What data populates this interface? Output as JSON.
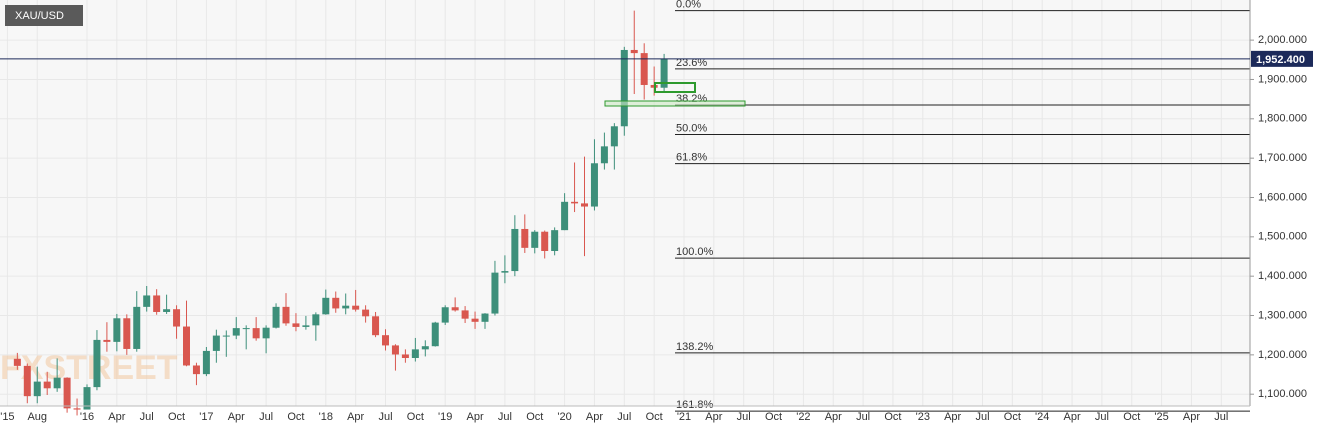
{
  "chart_data": {
    "type": "candlestick",
    "symbol": "XAU/USD",
    "watermark": "FXSTREET",
    "up_color": "#3d8f7a",
    "down_color": "#d9574f",
    "grid": true,
    "x": [
      "2015-06",
      "2015-07",
      "2015-08",
      "2015-09",
      "2015-10",
      "2015-11",
      "2015-12",
      "2016-01",
      "2016-02",
      "2016-03",
      "2016-04",
      "2016-05",
      "2016-06",
      "2016-07",
      "2016-08",
      "2016-09",
      "2016-10",
      "2016-11",
      "2016-12",
      "2017-01",
      "2017-02",
      "2017-03",
      "2017-04",
      "2017-05",
      "2017-06",
      "2017-07",
      "2017-08",
      "2017-09",
      "2017-10",
      "2017-11",
      "2017-12",
      "2018-01",
      "2018-02",
      "2018-03",
      "2018-04",
      "2018-05",
      "2018-06",
      "2018-07",
      "2018-08",
      "2018-09",
      "2018-10",
      "2018-11",
      "2018-12",
      "2019-01",
      "2019-02",
      "2019-03",
      "2019-04",
      "2019-05",
      "2019-06",
      "2019-07",
      "2019-08",
      "2019-09",
      "2019-10",
      "2019-11",
      "2019-12",
      "2020-01",
      "2020-02",
      "2020-03",
      "2020-04",
      "2020-05",
      "2020-06",
      "2020-07",
      "2020-08",
      "2020-09",
      "2020-10",
      "2020-11"
    ],
    "open": [
      1190,
      1172,
      1095,
      1132,
      1115,
      1142,
      1064,
      1061,
      1118,
      1238,
      1233,
      1293,
      1215,
      1322,
      1351,
      1309,
      1316,
      1272,
      1173,
      1151,
      1210,
      1249,
      1249,
      1268,
      1268,
      1242,
      1269,
      1322,
      1280,
      1271,
      1275,
      1303,
      1345,
      1318,
      1325,
      1315,
      1298,
      1250,
      1224,
      1201,
      1192,
      1214,
      1222,
      1282,
      1321,
      1313,
      1292,
      1284,
      1305,
      1409,
      1413,
      1520,
      1472,
      1513,
      1464,
      1517,
      1589,
      1585,
      1577,
      1687,
      1730,
      1781,
      1975,
      1967,
      1886,
      1879
    ],
    "high": [
      1205,
      1178,
      1170,
      1157,
      1191,
      1143,
      1089,
      1125,
      1263,
      1283,
      1304,
      1303,
      1362,
      1375,
      1367,
      1353,
      1326,
      1338,
      1180,
      1220,
      1264,
      1262,
      1296,
      1275,
      1296,
      1275,
      1331,
      1357,
      1306,
      1299,
      1308,
      1366,
      1361,
      1356,
      1365,
      1326,
      1309,
      1265,
      1227,
      1214,
      1243,
      1237,
      1284,
      1326,
      1346,
      1324,
      1310,
      1306,
      1439,
      1453,
      1555,
      1557,
      1517,
      1516,
      1524,
      1611,
      1689,
      1704,
      1748,
      1765,
      1789,
      1983,
      2075,
      1992,
      1933,
      1965
    ],
    "low": [
      1162,
      1077,
      1077,
      1098,
      1106,
      1053,
      1046,
      1062,
      1110,
      1208,
      1209,
      1200,
      1208,
      1310,
      1302,
      1304,
      1241,
      1171,
      1123,
      1146,
      1180,
      1195,
      1240,
      1214,
      1236,
      1204,
      1267,
      1274,
      1260,
      1264,
      1236,
      1302,
      1307,
      1303,
      1310,
      1282,
      1245,
      1211,
      1160,
      1180,
      1183,
      1196,
      1221,
      1276,
      1310,
      1281,
      1266,
      1266,
      1300,
      1382,
      1400,
      1459,
      1458,
      1445,
      1453,
      1517,
      1563,
      1451,
      1567,
      1671,
      1671,
      1757,
      1863,
      1849,
      1859,
      1870
    ],
    "close": [
      1172,
      1095,
      1132,
      1115,
      1142,
      1064,
      1061,
      1118,
      1238,
      1233,
      1293,
      1215,
      1322,
      1351,
      1309,
      1316,
      1272,
      1173,
      1151,
      1210,
      1249,
      1249,
      1268,
      1268,
      1242,
      1269,
      1322,
      1280,
      1271,
      1275,
      1303,
      1345,
      1318,
      1325,
      1315,
      1298,
      1250,
      1224,
      1201,
      1192,
      1214,
      1222,
      1282,
      1321,
      1313,
      1292,
      1284,
      1305,
      1409,
      1413,
      1520,
      1472,
      1513,
      1464,
      1517,
      1589,
      1585,
      1577,
      1687,
      1730,
      1781,
      1975,
      1967,
      1886,
      1879,
      1952
    ],
    "ylim": [
      1070,
      2102
    ],
    "yticks": [
      {
        "value": 1100,
        "label": "1,100.000"
      },
      {
        "value": 1200,
        "label": "1,200.000"
      },
      {
        "value": 1300,
        "label": "1,300.000"
      },
      {
        "value": 1400,
        "label": "1,400.000"
      },
      {
        "value": 1500,
        "label": "1,500.000"
      },
      {
        "value": 1600,
        "label": "1,600.000"
      },
      {
        "value": 1700,
        "label": "1,700.000"
      },
      {
        "value": 1800,
        "label": "1,800.000"
      },
      {
        "value": 1900,
        "label": "1,900.000"
      },
      {
        "value": 2000,
        "label": "2,000.000"
      }
    ],
    "last_price": {
      "value": 1952.4,
      "label": "1,952.400"
    },
    "xticks": [
      {
        "value": "2015-05",
        "label": "'15"
      },
      {
        "value": "2015-08",
        "label": "Aug"
      },
      {
        "value": "2016-01",
        "label": "'16"
      },
      {
        "value": "2016-04",
        "label": "Apr"
      },
      {
        "value": "2016-07",
        "label": "Jul"
      },
      {
        "value": "2016-10",
        "label": "Oct"
      },
      {
        "value": "2017-01",
        "label": "'17"
      },
      {
        "value": "2017-04",
        "label": "Apr"
      },
      {
        "value": "2017-07",
        "label": "Jul"
      },
      {
        "value": "2017-10",
        "label": "Oct"
      },
      {
        "value": "2018-01",
        "label": "'18"
      },
      {
        "value": "2018-04",
        "label": "Apr"
      },
      {
        "value": "2018-07",
        "label": "Jul"
      },
      {
        "value": "2018-10",
        "label": "Oct"
      },
      {
        "value": "2019-01",
        "label": "'19"
      },
      {
        "value": "2019-04",
        "label": "Apr"
      },
      {
        "value": "2019-07",
        "label": "Jul"
      },
      {
        "value": "2019-10",
        "label": "Oct"
      },
      {
        "value": "2020-01",
        "label": "'20"
      },
      {
        "value": "2020-04",
        "label": "Apr"
      },
      {
        "value": "2020-07",
        "label": "Jul"
      },
      {
        "value": "2020-10",
        "label": "Oct"
      },
      {
        "value": "2021-01",
        "label": "'21"
      },
      {
        "value": "2021-04",
        "label": "Apr"
      },
      {
        "value": "2021-07",
        "label": "Jul"
      },
      {
        "value": "2021-10",
        "label": "Oct"
      },
      {
        "value": "2022-01",
        "label": "'22"
      },
      {
        "value": "2022-04",
        "label": "Apr"
      },
      {
        "value": "2022-07",
        "label": "Jul"
      },
      {
        "value": "2022-10",
        "label": "Oct"
      },
      {
        "value": "2023-01",
        "label": "'23"
      },
      {
        "value": "2023-04",
        "label": "Apr"
      },
      {
        "value": "2023-07",
        "label": "Jul"
      },
      {
        "value": "2023-10",
        "label": "Oct"
      },
      {
        "value": "2024-01",
        "label": "'24"
      },
      {
        "value": "2024-04",
        "label": "Apr"
      },
      {
        "value": "2024-07",
        "label": "Jul"
      },
      {
        "value": "2024-10",
        "label": "Oct"
      },
      {
        "value": "2025-01",
        "label": "'25"
      },
      {
        "value": "2025-04",
        "label": "Apr"
      },
      {
        "value": "2025-07",
        "label": "Jul"
      }
    ],
    "fib_levels": [
      {
        "label": "0.0%",
        "price": 2075
      },
      {
        "label": "23.6%",
        "price": 1927
      },
      {
        "label": "38.2%",
        "price": 1835
      },
      {
        "label": "50.0%",
        "price": 1760
      },
      {
        "label": "61.8%",
        "price": 1686
      },
      {
        "label": "100.0%",
        "price": 1446
      },
      {
        "label": "138.2%",
        "price": 1205
      },
      {
        "label": "161.8%",
        "price": 1057
      }
    ]
  }
}
